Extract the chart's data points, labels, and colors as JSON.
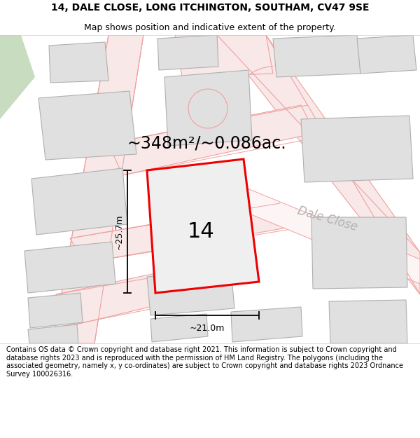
{
  "title_line1": "14, DALE CLOSE, LONG ITCHINGTON, SOUTHAM, CV47 9SE",
  "title_line2": "Map shows position and indicative extent of the property.",
  "footer_text": "Contains OS data © Crown copyright and database right 2021. This information is subject to Crown copyright and database rights 2023 and is reproduced with the permission of HM Land Registry. The polygons (including the associated geometry, namely x, y co-ordinates) are subject to Crown copyright and database rights 2023 Ordnance Survey 100026316.",
  "map_bg": "#ffffff",
  "building_fill": "#e0e0e0",
  "building_edge": "#b0b0b0",
  "road_line_color": "#f0a0a0",
  "road_fill_color": "#f8e8e8",
  "green_fill": "#d8e8d0",
  "highlight_color": "#ee0000",
  "highlight_lw": 2.2,
  "property_number": "14",
  "area_text": "~348m²/~0.086ac.",
  "width_text": "~21.0m",
  "height_text": "~25.7m",
  "street_name": "Dale Close",
  "title_fontsize": 10,
  "subtitle_fontsize": 9,
  "footer_fontsize": 7.0,
  "area_fontsize": 17,
  "number_fontsize": 22,
  "measurement_fontsize": 9,
  "street_fontsize": 12
}
